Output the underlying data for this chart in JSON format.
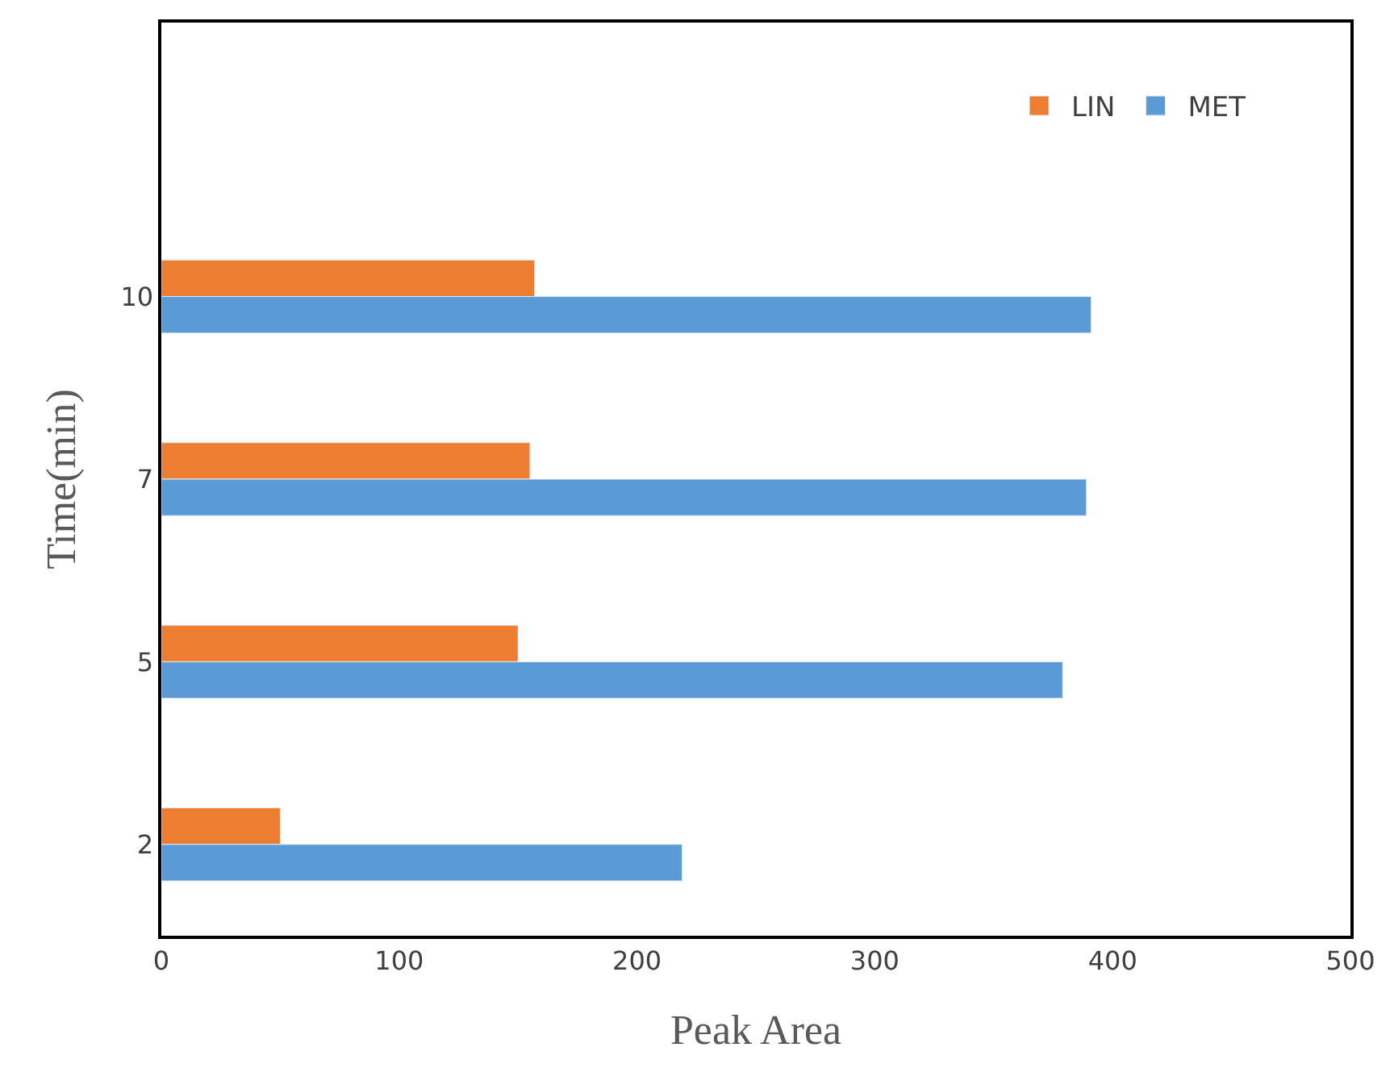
{
  "chart_data": {
    "type": "bar",
    "orientation": "horizontal",
    "xlabel": "Peak Area",
    "ylabel": "Time(min)",
    "categories": [
      "10",
      "7",
      "5",
      "2"
    ],
    "series": [
      {
        "name": "LIN",
        "color": "#ed7d31",
        "values": [
          157,
          155,
          150,
          50
        ]
      },
      {
        "name": "MET",
        "color": "#5b9bd5",
        "values": [
          391,
          389,
          379,
          219
        ]
      }
    ],
    "xlim": [
      0,
      500
    ],
    "xticks": [
      0,
      100,
      200,
      300,
      400,
      500
    ],
    "legend": "top right"
  }
}
